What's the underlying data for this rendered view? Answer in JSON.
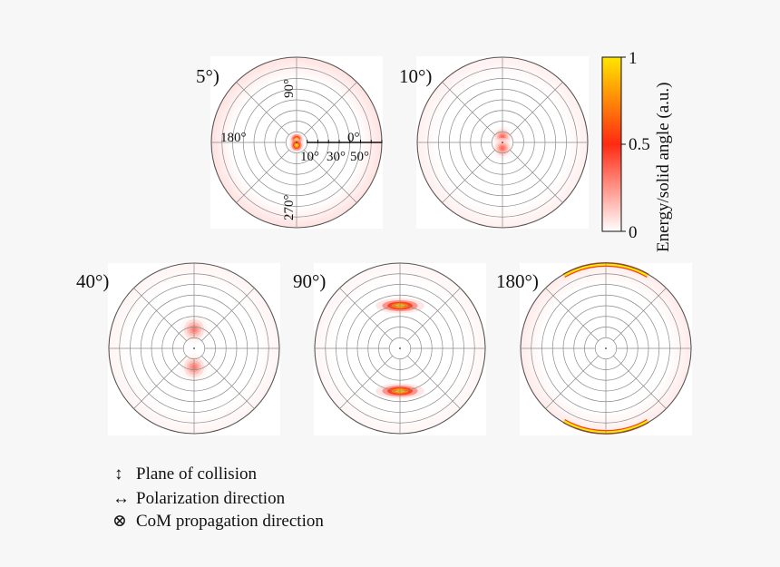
{
  "chart_data": {
    "type": "polar-heatmap",
    "quantity": "Energy/solid angle (a.u.)",
    "panels": [
      {
        "label": "5°)",
        "axis_labels": {
          "theta_90": "90°",
          "theta_180": "180°",
          "theta_0": "0°",
          "theta_270": "270°"
        },
        "radial_tick_labels": [
          "10°",
          "30°",
          "50°"
        ],
        "rings": 8,
        "hotspots": [
          {
            "azimuth_deg": 90,
            "polar_deg": 3,
            "intensity": 1.0,
            "spread_deg": 2,
            "elongation": 1
          },
          {
            "azimuth_deg": 270,
            "polar_deg": 3,
            "intensity": 1.0,
            "spread_deg": 2,
            "elongation": 1
          }
        ],
        "rim_glow": 0.15
      },
      {
        "label": "10°)",
        "rings": 8,
        "hotspots": [
          {
            "azimuth_deg": 90,
            "polar_deg": 6,
            "intensity": 0.35,
            "spread_deg": 3,
            "elongation": 1
          },
          {
            "azimuth_deg": 270,
            "polar_deg": 6,
            "intensity": 0.35,
            "spread_deg": 3,
            "elongation": 1
          }
        ],
        "rim_glow": 0.08
      },
      {
        "label": "40°)",
        "rings": 8,
        "hotspots": [
          {
            "azimuth_deg": 90,
            "polar_deg": 20,
            "intensity": 0.3,
            "spread_deg": 4,
            "elongation": 1
          },
          {
            "azimuth_deg": 270,
            "polar_deg": 20,
            "intensity": 0.3,
            "spread_deg": 4,
            "elongation": 1
          }
        ],
        "rim_glow": 0.06
      },
      {
        "label": "90°)",
        "rings": 8,
        "hotspots": [
          {
            "azimuth_deg": 90,
            "polar_deg": 45,
            "intensity": 0.95,
            "spread_deg": 2.2,
            "elongation": 3.2
          },
          {
            "azimuth_deg": 270,
            "polar_deg": 45,
            "intensity": 0.95,
            "spread_deg": 2.2,
            "elongation": 3.2
          }
        ],
        "rim_glow": 0.05
      },
      {
        "label": "180°)",
        "rings": 8,
        "hotspots": [],
        "rim_arcs": [
          {
            "azimuth_center_deg": 90,
            "half_width_deg": 30,
            "intensity": 1.0
          },
          {
            "azimuth_center_deg": 270,
            "half_width_deg": 30,
            "intensity": 1.0
          }
        ],
        "rim_glow": 0.1
      }
    ],
    "colorbar": {
      "title": "Energy/solid angle (a.u.)",
      "ticks": [
        {
          "value": 1,
          "label": "1"
        },
        {
          "value": 0.5,
          "label": "0.5"
        },
        {
          "value": 0,
          "label": "0"
        }
      ],
      "colors": [
        "#ffffff",
        "#ff2a12",
        "#ffe600"
      ]
    },
    "legend": [
      {
        "symbol": "↕",
        "text": "Plane of collision"
      },
      {
        "symbol": "↔",
        "text": "Polarization direction"
      },
      {
        "symbol": "⊗",
        "text": "CoM propagation direction"
      }
    ]
  }
}
